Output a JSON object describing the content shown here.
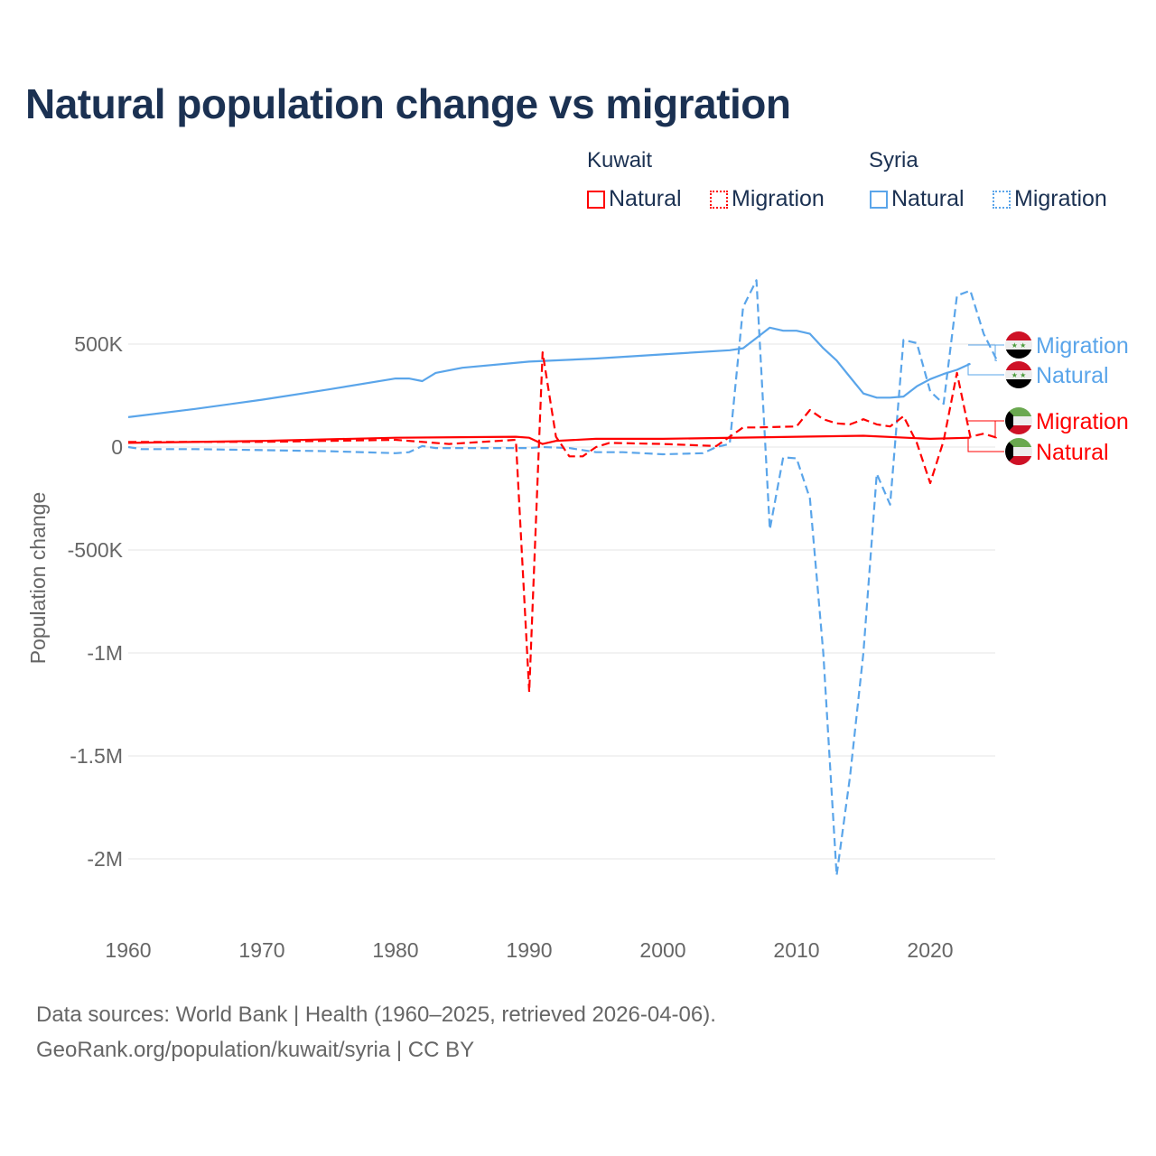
{
  "chart_data": {
    "type": "line",
    "title": "Natural population change vs migration",
    "xlabel": "",
    "ylabel": "Population change",
    "xlim": [
      1960,
      2025
    ],
    "ylim": [
      -2200000,
      800000
    ],
    "x_ticks": [
      1960,
      1970,
      1980,
      1990,
      2000,
      2010,
      2020
    ],
    "x_tick_labels": [
      "1960",
      "1970",
      "1980",
      "1990",
      "2000",
      "2010",
      "2020"
    ],
    "y_ticks": [
      500000,
      0,
      -500000,
      -1000000,
      -1500000,
      -2000000
    ],
    "y_tick_labels": [
      "500K",
      "0",
      "-500K",
      "-1M",
      "-1.5M",
      "-2M"
    ],
    "legend_placement": "top-right",
    "legend_groups": [
      "Kuwait",
      "Syria"
    ],
    "series": [
      {
        "name": "Syria Migration",
        "country": "Syria",
        "kind": "Migration",
        "label": "Migration",
        "color": "#5aa5ea",
        "dash": true,
        "x": [
          1960,
          1961,
          1965,
          1970,
          1975,
          1980,
          1981,
          1982,
          1983,
          1985,
          1990,
          1991,
          1993,
          1995,
          1997,
          2000,
          2003,
          2004,
          2005,
          2006,
          2007,
          2008,
          2009,
          2010,
          2011,
          2012,
          2013,
          2014,
          2015,
          2016,
          2017,
          2018,
          2019,
          2020,
          2021,
          2022,
          2023,
          2024,
          2025
        ],
        "values": [
          0,
          -10000,
          -10000,
          -15000,
          -20000,
          -30000,
          -25000,
          5000,
          -5000,
          -5000,
          -5000,
          0,
          -5000,
          -25000,
          -25000,
          -35000,
          -30000,
          0,
          15000,
          680000,
          810000,
          -400000,
          -50000,
          -55000,
          -250000,
          -1000000,
          -2080000,
          -1600000,
          -1000000,
          -130000,
          -280000,
          520000,
          505000,
          270000,
          210000,
          735000,
          760000,
          550000,
          420000
        ]
      },
      {
        "name": "Syria Natural",
        "country": "Syria",
        "kind": "Natural",
        "label": "Natural",
        "color": "#5aa5ea",
        "dash": false,
        "x": [
          1960,
          1965,
          1970,
          1975,
          1980,
          1981,
          1982,
          1983,
          1985,
          1990,
          1995,
          2000,
          2005,
          2006,
          2007,
          2008,
          2009,
          2010,
          2011,
          2012,
          2013,
          2014,
          2015,
          2016,
          2017,
          2018,
          2019,
          2020,
          2021,
          2022,
          2023
        ],
        "values": [
          145000,
          185000,
          230000,
          280000,
          333000,
          333000,
          320000,
          360000,
          385000,
          415000,
          430000,
          450000,
          470000,
          480000,
          530000,
          580000,
          565000,
          565000,
          550000,
          480000,
          420000,
          340000,
          260000,
          240000,
          240000,
          245000,
          295000,
          330000,
          355000,
          375000,
          405000
        ]
      },
      {
        "name": "Kuwait Migration",
        "country": "Kuwait",
        "kind": "Migration",
        "label": "Migration",
        "color": "#ff0000",
        "dash": true,
        "x": [
          1960,
          1970,
          1980,
          1984,
          1989,
          1990,
          1991,
          1992,
          1993,
          1994,
          1995,
          1996,
          2000,
          2004,
          2005,
          2006,
          2007,
          2010,
          2011,
          2012,
          2013,
          2014,
          2015,
          2016,
          2017,
          2018,
          2019,
          2020,
          2021,
          2022,
          2023,
          2024,
          2025
        ],
        "values": [
          25000,
          25000,
          35000,
          15000,
          35000,
          -1190000,
          460000,
          50000,
          -45000,
          -45000,
          0,
          20000,
          15000,
          5000,
          50000,
          95000,
          95000,
          100000,
          180000,
          135000,
          115000,
          110000,
          135000,
          110000,
          100000,
          150000,
          20000,
          -175000,
          30000,
          360000,
          50000,
          65000,
          45000
        ]
      },
      {
        "name": "Kuwait Natural",
        "country": "Kuwait",
        "kind": "Natural",
        "label": "Natural",
        "color": "#ff0000",
        "dash": false,
        "x": [
          1960,
          1970,
          1980,
          1989,
          1990,
          1991,
          1992,
          1995,
          2000,
          2010,
          2015,
          2020,
          2023
        ],
        "values": [
          20000,
          30000,
          45000,
          50000,
          45000,
          15000,
          30000,
          40000,
          40000,
          50000,
          55000,
          40000,
          45000
        ]
      }
    ]
  },
  "legend": {
    "kuwait": {
      "title": "Kuwait",
      "natural": "Natural",
      "migration": "Migration"
    },
    "syria": {
      "title": "Syria",
      "natural": "Natural",
      "migration": "Migration"
    }
  },
  "colors": {
    "kuwait": "#ff0000",
    "syria": "#5aa5ea",
    "title": "#1b3152"
  },
  "footer": {
    "line1": "Data sources: World Bank | Health (1960–2025, retrieved 2026-04-06).",
    "line2": "GeoRank.org/population/kuwait/syria | CC BY"
  }
}
